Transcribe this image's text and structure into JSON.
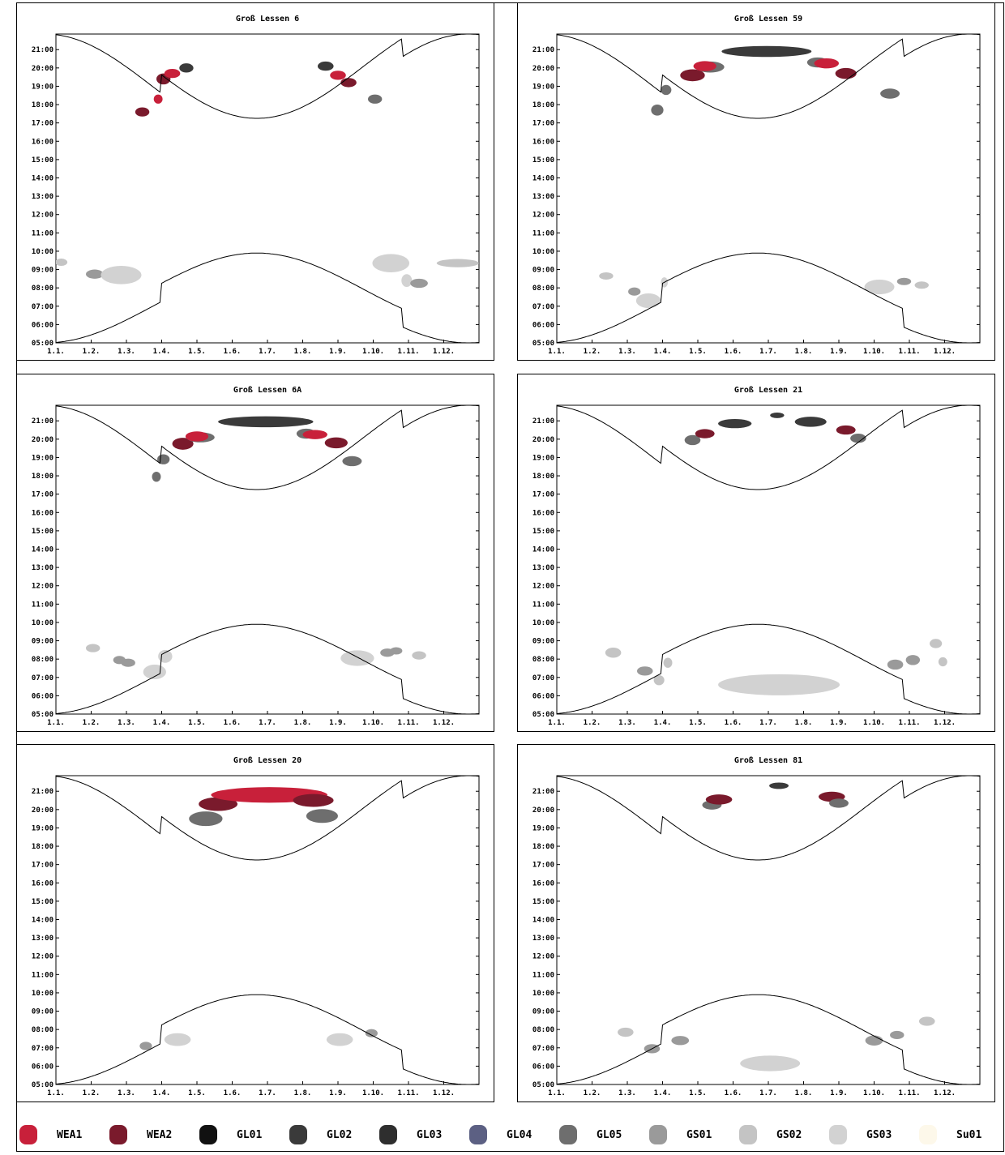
{
  "colors": {
    "WEA1": "#c8203a",
    "WEA2": "#7a1a2c",
    "GL01": "#111111",
    "GL02": "#3a3a3a",
    "GL03": "#2e2e2e",
    "GL04": "#5c6083",
    "GL05": "#6e6e6e",
    "GS01": "#9a9a9a",
    "GS02": "#c4c4c4",
    "GS03": "#d2d2d2",
    "Su01": "#fdf8ea"
  },
  "legend": [
    {
      "key": "WEA1",
      "label": "WEA1"
    },
    {
      "key": "WEA2",
      "label": "WEA2"
    },
    {
      "key": "GL01",
      "label": "GL01"
    },
    {
      "key": "GL02",
      "label": "GL02"
    },
    {
      "key": "GL03",
      "label": "GL03"
    },
    {
      "key": "GL04",
      "label": "GL04"
    },
    {
      "key": "GL05",
      "label": "GL05"
    },
    {
      "key": "GS01",
      "label": "GS01"
    },
    {
      "key": "GS02",
      "label": "GS02"
    },
    {
      "key": "GS03",
      "label": "GS03"
    },
    {
      "key": "Su01",
      "label": "Su01"
    }
  ],
  "chart_data": [
    {
      "type": "scatter",
      "title": "Groß Lessen 6",
      "x_ticks": [
        "1.1.",
        "1.2.",
        "1.3.",
        "1.4.",
        "1.5.",
        "1.6.",
        "1.7.",
        "1.8.",
        "1.9.",
        "1.10.",
        "1.11.",
        "1.12."
      ],
      "y_ticks": [
        "05:00",
        "06:00",
        "07:00",
        "08:00",
        "09:00",
        "10:00",
        "11:00",
        "12:00",
        "13:00",
        "14:00",
        "15:00",
        "16:00",
        "17:00",
        "18:00",
        "19:00",
        "20:00",
        "21:00"
      ],
      "ylim": [
        5,
        21.85
      ],
      "sunset_line": true,
      "sunrise_line": true,
      "shadow_periods": [
        {
          "source": "WEA2",
          "x": 3.45,
          "y": 17.6,
          "w": 0.4,
          "h": 0.5
        },
        {
          "source": "WEA1",
          "x": 3.9,
          "y": 18.3,
          "w": 0.25,
          "h": 0.5
        },
        {
          "source": "WEA2",
          "x": 4.05,
          "y": 19.4,
          "w": 0.4,
          "h": 0.6
        },
        {
          "source": "WEA1",
          "x": 4.3,
          "y": 19.7,
          "w": 0.45,
          "h": 0.5
        },
        {
          "source": "GL02",
          "x": 4.7,
          "y": 20.0,
          "w": 0.4,
          "h": 0.5
        },
        {
          "source": "GL02",
          "x": 8.65,
          "y": 20.1,
          "w": 0.45,
          "h": 0.5
        },
        {
          "source": "WEA1",
          "x": 9.0,
          "y": 19.6,
          "w": 0.45,
          "h": 0.5
        },
        {
          "source": "WEA2",
          "x": 9.3,
          "y": 19.2,
          "w": 0.45,
          "h": 0.5
        },
        {
          "source": "GL05",
          "x": 10.05,
          "y": 18.3,
          "w": 0.4,
          "h": 0.5
        },
        {
          "source": "GS02",
          "x": 1.15,
          "y": 9.4,
          "w": 0.35,
          "h": 0.4
        },
        {
          "source": "GS01",
          "x": 2.1,
          "y": 8.75,
          "w": 0.5,
          "h": 0.5
        },
        {
          "source": "GS03",
          "x": 2.85,
          "y": 8.7,
          "w": 1.15,
          "h": 1.0
        },
        {
          "source": "GS03",
          "x": 10.5,
          "y": 9.35,
          "w": 1.05,
          "h": 1.0
        },
        {
          "source": "GS03",
          "x": 10.95,
          "y": 8.4,
          "w": 0.3,
          "h": 0.7
        },
        {
          "source": "GS01",
          "x": 11.3,
          "y": 8.25,
          "w": 0.5,
          "h": 0.5
        },
        {
          "source": "GS02",
          "x": 12.4,
          "y": 9.35,
          "w": 1.2,
          "h": 0.45
        }
      ]
    },
    {
      "type": "scatter",
      "title": "Groß Lessen 59",
      "x_ticks": [
        "1.1.",
        "1.2.",
        "1.3.",
        "1.4.",
        "1.5.",
        "1.6.",
        "1.7.",
        "1.8.",
        "1.9.",
        "1.10.",
        "1.11.",
        "1.12."
      ],
      "y_ticks": [
        "05:00",
        "06:00",
        "07:00",
        "08:00",
        "09:00",
        "10:00",
        "11:00",
        "12:00",
        "13:00",
        "14:00",
        "15:00",
        "16:00",
        "17:00",
        "18:00",
        "19:00",
        "20:00",
        "21:00"
      ],
      "ylim": [
        5,
        21.85
      ],
      "sunset_line": true,
      "sunrise_line": true,
      "shadow_periods": [
        {
          "source": "GL05",
          "x": 3.85,
          "y": 17.7,
          "w": 0.35,
          "h": 0.6
        },
        {
          "source": "GL05",
          "x": 4.1,
          "y": 18.8,
          "w": 0.3,
          "h": 0.55
        },
        {
          "source": "WEA2",
          "x": 4.85,
          "y": 19.6,
          "w": 0.7,
          "h": 0.65
        },
        {
          "source": "GL05",
          "x": 5.35,
          "y": 20.05,
          "w": 0.8,
          "h": 0.6
        },
        {
          "source": "WEA1",
          "x": 5.2,
          "y": 20.1,
          "w": 0.65,
          "h": 0.55
        },
        {
          "source": "GL02",
          "x": 6.95,
          "y": 20.9,
          "w": 2.55,
          "h": 0.6
        },
        {
          "source": "GL05",
          "x": 8.4,
          "y": 20.3,
          "w": 0.6,
          "h": 0.55
        },
        {
          "source": "WEA1",
          "x": 8.65,
          "y": 20.25,
          "w": 0.7,
          "h": 0.55
        },
        {
          "source": "WEA2",
          "x": 9.2,
          "y": 19.7,
          "w": 0.6,
          "h": 0.6
        },
        {
          "source": "GL05",
          "x": 10.45,
          "y": 18.6,
          "w": 0.55,
          "h": 0.55
        },
        {
          "source": "GS02",
          "x": 2.4,
          "y": 8.65,
          "w": 0.4,
          "h": 0.4
        },
        {
          "source": "GS01",
          "x": 3.2,
          "y": 7.8,
          "w": 0.35,
          "h": 0.45
        },
        {
          "source": "GS03",
          "x": 3.6,
          "y": 7.3,
          "w": 0.7,
          "h": 0.8
        },
        {
          "source": "GS03",
          "x": 4.05,
          "y": 8.3,
          "w": 0.2,
          "h": 0.55
        },
        {
          "source": "GS03",
          "x": 10.15,
          "y": 8.05,
          "w": 0.85,
          "h": 0.8
        },
        {
          "source": "GS01",
          "x": 10.85,
          "y": 8.35,
          "w": 0.4,
          "h": 0.4
        },
        {
          "source": "GS02",
          "x": 11.35,
          "y": 8.15,
          "w": 0.4,
          "h": 0.4
        }
      ]
    },
    {
      "type": "scatter",
      "title": "Groß Lessen 6A",
      "x_ticks": [
        "1.1.",
        "1.2.",
        "1.3.",
        "1.4.",
        "1.5.",
        "1.6.",
        "1.7.",
        "1.8.",
        "1.9.",
        "1.10.",
        "1.11.",
        "1.12."
      ],
      "y_ticks": [
        "05:00",
        "06:00",
        "07:00",
        "08:00",
        "09:00",
        "10:00",
        "11:00",
        "12:00",
        "13:00",
        "14:00",
        "15:00",
        "16:00",
        "17:00",
        "18:00",
        "19:00",
        "20:00",
        "21:00"
      ],
      "ylim": [
        5,
        21.85
      ],
      "sunset_line": true,
      "sunrise_line": true,
      "shadow_periods": [
        {
          "source": "GL05",
          "x": 3.85,
          "y": 17.95,
          "w": 0.25,
          "h": 0.55
        },
        {
          "source": "GL05",
          "x": 4.05,
          "y": 18.9,
          "w": 0.35,
          "h": 0.55
        },
        {
          "source": "WEA2",
          "x": 4.6,
          "y": 19.75,
          "w": 0.6,
          "h": 0.65
        },
        {
          "source": "GL05",
          "x": 5.1,
          "y": 20.1,
          "w": 0.8,
          "h": 0.55
        },
        {
          "source": "WEA1",
          "x": 5.0,
          "y": 20.15,
          "w": 0.65,
          "h": 0.55
        },
        {
          "source": "GL02",
          "x": 6.95,
          "y": 20.95,
          "w": 2.7,
          "h": 0.6
        },
        {
          "source": "GL05",
          "x": 8.1,
          "y": 20.3,
          "w": 0.55,
          "h": 0.55
        },
        {
          "source": "WEA1",
          "x": 8.35,
          "y": 20.25,
          "w": 0.7,
          "h": 0.5
        },
        {
          "source": "WEA2",
          "x": 8.95,
          "y": 19.8,
          "w": 0.65,
          "h": 0.6
        },
        {
          "source": "GL05",
          "x": 9.4,
          "y": 18.8,
          "w": 0.55,
          "h": 0.55
        },
        {
          "source": "GS02",
          "x": 2.05,
          "y": 8.6,
          "w": 0.4,
          "h": 0.45
        },
        {
          "source": "GS01",
          "x": 2.8,
          "y": 7.95,
          "w": 0.35,
          "h": 0.45
        },
        {
          "source": "GS01",
          "x": 3.05,
          "y": 7.8,
          "w": 0.4,
          "h": 0.45
        },
        {
          "source": "GS03",
          "x": 3.8,
          "y": 7.3,
          "w": 0.65,
          "h": 0.8
        },
        {
          "source": "GS03",
          "x": 4.1,
          "y": 8.15,
          "w": 0.4,
          "h": 0.7
        },
        {
          "source": "GS03",
          "x": 9.55,
          "y": 8.05,
          "w": 0.95,
          "h": 0.85
        },
        {
          "source": "GS01",
          "x": 10.4,
          "y": 8.35,
          "w": 0.4,
          "h": 0.45
        },
        {
          "source": "GS01",
          "x": 10.65,
          "y": 8.45,
          "w": 0.35,
          "h": 0.4
        },
        {
          "source": "GS02",
          "x": 11.3,
          "y": 8.2,
          "w": 0.4,
          "h": 0.45
        }
      ]
    },
    {
      "type": "scatter",
      "title": "Groß Lessen 21",
      "x_ticks": [
        "1.1.",
        "1.2.",
        "1.3.",
        "1.4.",
        "1.5.",
        "1.6.",
        "1.7.",
        "1.8.",
        "1.9.",
        "1.10.",
        "1.11.",
        "1.12."
      ],
      "y_ticks": [
        "05:00",
        "06:00",
        "07:00",
        "08:00",
        "09:00",
        "10:00",
        "11:00",
        "12:00",
        "13:00",
        "14:00",
        "15:00",
        "16:00",
        "17:00",
        "18:00",
        "19:00",
        "20:00",
        "21:00"
      ],
      "ylim": [
        5,
        21.85
      ],
      "sunset_line": true,
      "sunrise_line": true,
      "shadow_periods": [
        {
          "source": "GL05",
          "x": 4.85,
          "y": 19.95,
          "w": 0.45,
          "h": 0.55
        },
        {
          "source": "WEA2",
          "x": 5.2,
          "y": 20.3,
          "w": 0.55,
          "h": 0.5
        },
        {
          "source": "GL02",
          "x": 6.05,
          "y": 20.85,
          "w": 0.95,
          "h": 0.5
        },
        {
          "source": "GL02",
          "x": 7.25,
          "y": 21.3,
          "w": 0.4,
          "h": 0.3
        },
        {
          "source": "GL02",
          "x": 8.2,
          "y": 20.95,
          "w": 0.9,
          "h": 0.55
        },
        {
          "source": "WEA2",
          "x": 9.2,
          "y": 20.5,
          "w": 0.55,
          "h": 0.5
        },
        {
          "source": "GL05",
          "x": 9.55,
          "y": 20.05,
          "w": 0.45,
          "h": 0.5
        },
        {
          "source": "GS02",
          "x": 2.6,
          "y": 8.35,
          "w": 0.45,
          "h": 0.55
        },
        {
          "source": "GS01",
          "x": 3.5,
          "y": 7.35,
          "w": 0.45,
          "h": 0.5
        },
        {
          "source": "GS02",
          "x": 3.9,
          "y": 6.85,
          "w": 0.3,
          "h": 0.55
        },
        {
          "source": "GS02",
          "x": 4.15,
          "y": 7.8,
          "w": 0.25,
          "h": 0.55
        },
        {
          "source": "GS03",
          "x": 7.3,
          "y": 6.6,
          "w": 3.45,
          "h": 1.15
        },
        {
          "source": "GS01",
          "x": 10.6,
          "y": 7.7,
          "w": 0.45,
          "h": 0.55
        },
        {
          "source": "GS01",
          "x": 11.1,
          "y": 7.95,
          "w": 0.4,
          "h": 0.55
        },
        {
          "source": "GS02",
          "x": 11.75,
          "y": 8.85,
          "w": 0.35,
          "h": 0.5
        },
        {
          "source": "GS02",
          "x": 11.95,
          "y": 7.85,
          "w": 0.25,
          "h": 0.5
        }
      ]
    },
    {
      "type": "scatter",
      "title": "Groß Lessen 20",
      "x_ticks": [
        "1.1.",
        "1.2.",
        "1.3.",
        "1.4.",
        "1.5.",
        "1.6.",
        "1.7.",
        "1.8.",
        "1.9.",
        "1.10.",
        "1.11.",
        "1.12."
      ],
      "y_ticks": [
        "05:00",
        "06:00",
        "07:00",
        "08:00",
        "09:00",
        "10:00",
        "11:00",
        "12:00",
        "13:00",
        "14:00",
        "15:00",
        "16:00",
        "17:00",
        "18:00",
        "19:00",
        "20:00",
        "21:00"
      ],
      "ylim": [
        5,
        21.85
      ],
      "sunset_line": true,
      "sunrise_line": true,
      "shadow_periods": [
        {
          "source": "GL05",
          "x": 5.25,
          "y": 19.5,
          "w": 0.95,
          "h": 0.8
        },
        {
          "source": "WEA2",
          "x": 5.6,
          "y": 20.3,
          "w": 1.1,
          "h": 0.75
        },
        {
          "source": "WEA1",
          "x": 7.05,
          "y": 20.8,
          "w": 3.3,
          "h": 0.85
        },
        {
          "source": "WEA2",
          "x": 8.3,
          "y": 20.5,
          "w": 1.15,
          "h": 0.7
        },
        {
          "source": "GL05",
          "x": 8.55,
          "y": 19.65,
          "w": 0.9,
          "h": 0.75
        },
        {
          "source": "GS01",
          "x": 3.55,
          "y": 7.1,
          "w": 0.35,
          "h": 0.45
        },
        {
          "source": "GS03",
          "x": 4.45,
          "y": 7.45,
          "w": 0.75,
          "h": 0.7
        },
        {
          "source": "GS03",
          "x": 9.05,
          "y": 7.45,
          "w": 0.75,
          "h": 0.7
        },
        {
          "source": "GS01",
          "x": 9.95,
          "y": 7.8,
          "w": 0.35,
          "h": 0.45
        }
      ]
    },
    {
      "type": "scatter",
      "title": "Groß Lessen 81",
      "x_ticks": [
        "1.1.",
        "1.2.",
        "1.3.",
        "1.4.",
        "1.5.",
        "1.6.",
        "1.7.",
        "1.8.",
        "1.9.",
        "1.10.",
        "1.11.",
        "1.12."
      ],
      "y_ticks": [
        "05:00",
        "06:00",
        "07:00",
        "08:00",
        "09:00",
        "10:00",
        "11:00",
        "12:00",
        "13:00",
        "14:00",
        "15:00",
        "16:00",
        "17:00",
        "18:00",
        "19:00",
        "20:00",
        "21:00"
      ],
      "ylim": [
        5,
        21.85
      ],
      "sunset_line": true,
      "sunrise_line": true,
      "shadow_periods": [
        {
          "source": "GL05",
          "x": 5.4,
          "y": 20.25,
          "w": 0.55,
          "h": 0.5
        },
        {
          "source": "WEA2",
          "x": 5.6,
          "y": 20.55,
          "w": 0.75,
          "h": 0.55
        },
        {
          "source": "GL02",
          "x": 7.3,
          "y": 21.3,
          "w": 0.55,
          "h": 0.35
        },
        {
          "source": "WEA2",
          "x": 8.8,
          "y": 20.7,
          "w": 0.75,
          "h": 0.55
        },
        {
          "source": "GL05",
          "x": 9.0,
          "y": 20.35,
          "w": 0.55,
          "h": 0.5
        },
        {
          "source": "GS02",
          "x": 2.95,
          "y": 7.85,
          "w": 0.45,
          "h": 0.5
        },
        {
          "source": "GS01",
          "x": 3.7,
          "y": 6.95,
          "w": 0.45,
          "h": 0.5
        },
        {
          "source": "GS01",
          "x": 4.5,
          "y": 7.4,
          "w": 0.5,
          "h": 0.5
        },
        {
          "source": "GS03",
          "x": 7.05,
          "y": 6.15,
          "w": 1.7,
          "h": 0.85
        },
        {
          "source": "GS01",
          "x": 10.0,
          "y": 7.4,
          "w": 0.5,
          "h": 0.55
        },
        {
          "source": "GS01",
          "x": 10.65,
          "y": 7.7,
          "w": 0.4,
          "h": 0.45
        },
        {
          "source": "GS02",
          "x": 11.5,
          "y": 8.45,
          "w": 0.45,
          "h": 0.5
        }
      ]
    }
  ]
}
